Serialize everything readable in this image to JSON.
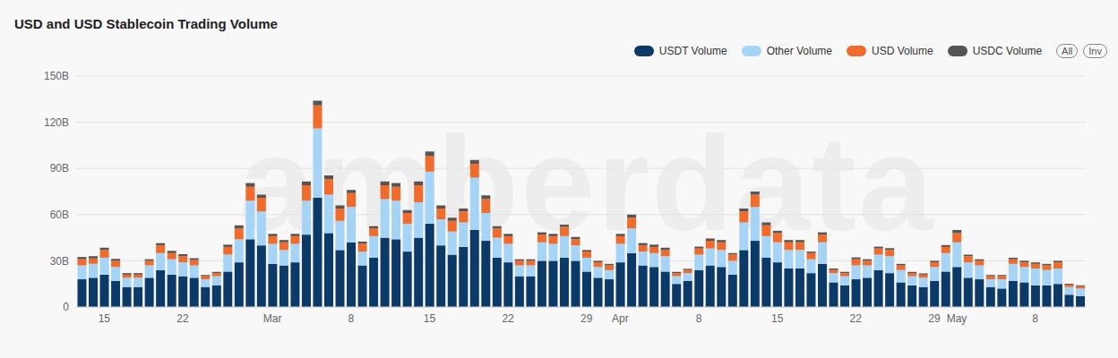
{
  "chart_data": {
    "type": "bar",
    "title": "USD and USD Stablecoin Trading Volume",
    "annotations": [
      "All",
      "Inv",
      "amberdata"
    ],
    "stacked": true,
    "grid": true,
    "legend": "top",
    "categories": [
      null,
      null,
      "15",
      null,
      null,
      null,
      null,
      null,
      null,
      "22",
      null,
      null,
      null,
      null,
      null,
      null,
      null,
      "Mar",
      null,
      null,
      null,
      null,
      null,
      null,
      "8",
      null,
      null,
      null,
      null,
      null,
      null,
      "15",
      null,
      null,
      null,
      null,
      null,
      null,
      "22",
      null,
      null,
      null,
      null,
      null,
      null,
      "29",
      null,
      null,
      "Apr",
      null,
      null,
      null,
      null,
      null,
      null,
      "8",
      null,
      null,
      null,
      null,
      null,
      null,
      "15",
      null,
      null,
      null,
      null,
      null,
      null,
      "22",
      null,
      null,
      null,
      null,
      null,
      null,
      "29",
      null,
      "May",
      null,
      null,
      null,
      null,
      null,
      null,
      "8",
      null,
      null,
      null,
      null
    ],
    "ylim": [
      0,
      150
    ],
    "yticks": [
      0,
      {
        "value": 30,
        "label": "30B"
      },
      {
        "value": 60,
        "label": "60B"
      },
      {
        "value": 90,
        "label": "90B"
      },
      {
        "value": 120,
        "label": "120B"
      },
      {
        "value": 150,
        "label": "150B"
      }
    ],
    "series": [
      {
        "name": "USDT Volume",
        "color": "#0c3a68",
        "values": [
          18,
          19,
          21,
          17,
          13,
          13,
          19,
          24,
          21,
          20,
          19,
          13,
          14,
          23,
          29,
          44,
          40,
          28,
          27,
          29,
          47,
          71,
          48,
          37,
          42,
          27,
          32,
          45,
          44,
          36,
          45,
          54,
          40,
          34,
          39,
          50,
          43,
          32,
          29,
          20,
          20,
          30,
          30,
          32,
          30,
          23,
          19,
          18,
          29,
          35,
          27,
          26,
          23,
          15,
          17,
          24,
          27,
          26,
          21,
          37,
          43,
          32,
          29,
          25,
          25,
          22,
          28,
          16,
          14,
          18,
          19,
          24,
          22,
          16,
          14,
          13,
          17,
          23,
          26,
          19,
          18,
          13,
          12,
          17,
          16,
          14,
          14,
          15,
          8,
          7
        ]
      },
      {
        "name": "Other Volume",
        "color": "#a6d4f7",
        "values": [
          9,
          9,
          11,
          9,
          6,
          6,
          8,
          11,
          10,
          9,
          8,
          5,
          6,
          11,
          15,
          25,
          22,
          13,
          10,
          12,
          22,
          45,
          25,
          19,
          23,
          9,
          14,
          25,
          25,
          18,
          23,
          34,
          17,
          15,
          16,
          34,
          18,
          13,
          12,
          7,
          7,
          12,
          11,
          14,
          10,
          9,
          7,
          6,
          12,
          16,
          9,
          9,
          10,
          5,
          5,
          10,
          11,
          11,
          9,
          18,
          22,
          14,
          13,
          12,
          12,
          9,
          14,
          6,
          6,
          9,
          8,
          10,
          11,
          8,
          6,
          6,
          9,
          12,
          16,
          10,
          9,
          5,
          6,
          11,
          10,
          11,
          10,
          10,
          5,
          5
        ]
      },
      {
        "name": "USD Volume",
        "color": "#f26b2b",
        "values": [
          4,
          3.5,
          5,
          4,
          2,
          2,
          3,
          5,
          4,
          4,
          3.5,
          2,
          2,
          5,
          7,
          9,
          9,
          5,
          5,
          5,
          10,
          15,
          10,
          8,
          9,
          5,
          5,
          9,
          9,
          7,
          11,
          10,
          7,
          7,
          7,
          9,
          9,
          6,
          5,
          3,
          3,
          5,
          5,
          6,
          4,
          4,
          3,
          3,
          5,
          7,
          4,
          4,
          4,
          2,
          2,
          4,
          5,
          5,
          4,
          7,
          8,
          7,
          6,
          5,
          5,
          4,
          5,
          2,
          2,
          4,
          3,
          4,
          4,
          3,
          2,
          2,
          3,
          4,
          6,
          4,
          3,
          2,
          2,
          3,
          3,
          3,
          3,
          4,
          1.5,
          1.5
        ]
      },
      {
        "name": "USDC Volume",
        "color": "#555555",
        "values": [
          1.5,
          1.5,
          1.5,
          1.2,
          1,
          1,
          1,
          1.5,
          1.5,
          1.3,
          1.2,
          0.8,
          0.8,
          1.5,
          2,
          2.5,
          2,
          1.5,
          1.5,
          1.5,
          2.5,
          3,
          2.5,
          2,
          2,
          1.5,
          1.5,
          2.5,
          2.5,
          2,
          2.5,
          3,
          2,
          2,
          2,
          2.5,
          2.5,
          1.5,
          1.5,
          1,
          1,
          1.5,
          1.5,
          1.5,
          1.5,
          1,
          1,
          1,
          1.5,
          2,
          1.5,
          1.5,
          1.5,
          0.8,
          0.8,
          1.2,
          1.5,
          1.5,
          1,
          2,
          2,
          2,
          1.5,
          1.5,
          1.5,
          1,
          1.5,
          1,
          0.8,
          1.2,
          1,
          1.2,
          1.2,
          1,
          0.8,
          0.8,
          1,
          1.2,
          2,
          1,
          1,
          0.8,
          0.8,
          1,
          1,
          1,
          1,
          1,
          0.6,
          0.6
        ]
      }
    ]
  }
}
